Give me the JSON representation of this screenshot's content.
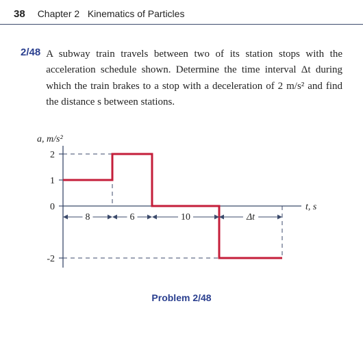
{
  "header": {
    "page_number": "38",
    "chapter_label": "Chapter 2",
    "chapter_title": "Kinematics of Particles"
  },
  "problem": {
    "number": "2/48",
    "text": "A subway train travels between two of its station stops with the acceleration schedule shown. Deter­mine the time interval Δt during which the train brakes to a stop with a deceleration of 2 m/s² and find the distance s between stations.",
    "caption": "Problem 2/48"
  },
  "chart": {
    "type": "step-line",
    "y_axis_label": "a, m/s²",
    "x_axis_label": "t, s",
    "y_ticks": [
      -2,
      0,
      1,
      2
    ],
    "segments": [
      {
        "label": "8",
        "a": 1
      },
      {
        "label": "6",
        "a": 2
      },
      {
        "label": "10",
        "a": 0
      },
      {
        "label": "Δt",
        "a": -2
      }
    ],
    "line_color": "#c41e3a",
    "line_width": 3,
    "axis_color": "#3b4a6b",
    "dash_color": "#3b4a6b",
    "text_color": "#222222",
    "font_family_axes": "Georgia, serif",
    "font_size_axes": 14,
    "dimension_arrow_color": "#3b4a6b"
  }
}
